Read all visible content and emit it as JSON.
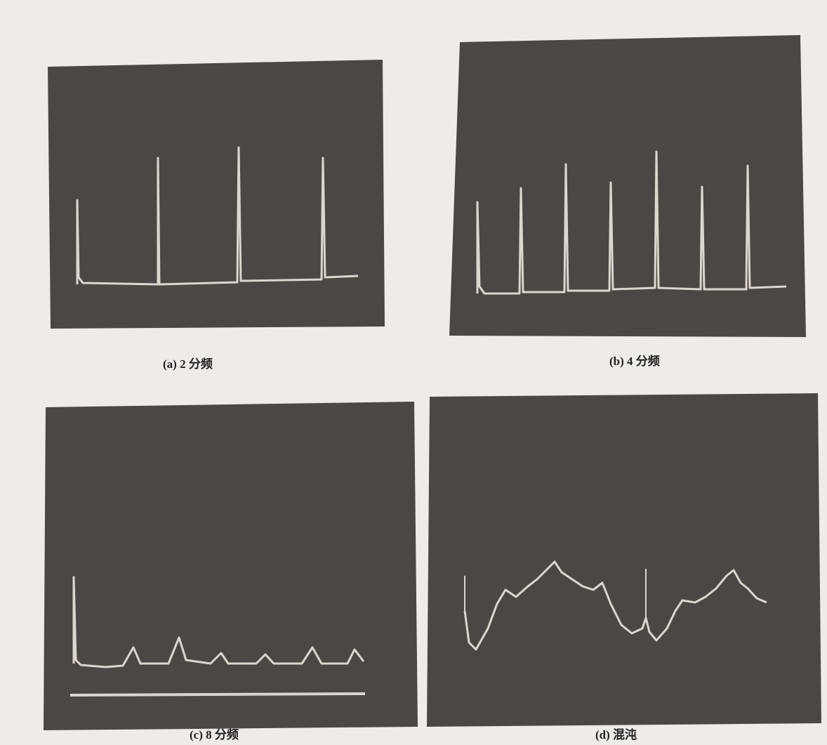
{
  "panels": [
    {
      "label": "(a) 2 分频"
    },
    {
      "label": "(b) 4 分频"
    },
    {
      "label": "(c) 8 分频"
    },
    {
      "label": "(d) 混沌"
    }
  ]
}
